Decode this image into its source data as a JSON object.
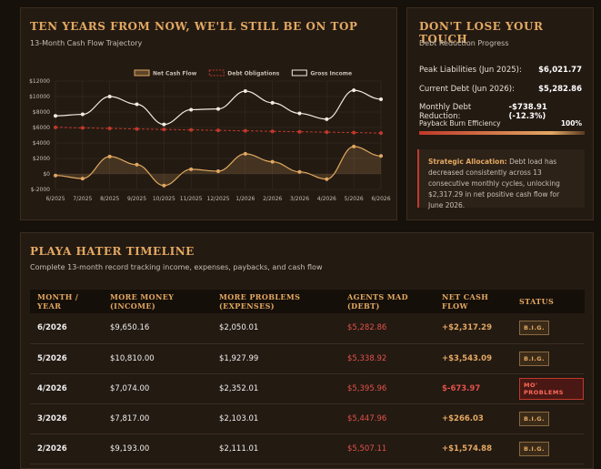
{
  "chart_data": {
    "type": "line",
    "title": "TEN YEARS FROM NOW, WE'LL STILL BE ON TOP",
    "subtitle": "13-Month Cash Flow Trajectory",
    "categories": [
      "6/2025",
      "7/2025",
      "8/2025",
      "9/2025",
      "10/2025",
      "11/2025",
      "12/2025",
      "1/2026",
      "2/2026",
      "3/2026",
      "4/2026",
      "5/2026",
      "6/2026"
    ],
    "series": [
      {
        "name": "Net Cash Flow",
        "color": "#e0a860",
        "values": [
          -200,
          -600,
          2250,
          1200,
          -1500,
          600,
          350,
          2600,
          1574.88,
          266.03,
          -673.97,
          3543.09,
          2317.29
        ]
      },
      {
        "name": "Debt Obligations",
        "color": "#c0392b",
        "values": [
          6021.77,
          5950,
          5880,
          5810,
          5750,
          5690,
          5630,
          5570,
          5507.11,
          5447.96,
          5395.96,
          5338.92,
          5282.86
        ]
      },
      {
        "name": "Gross Income",
        "color": "#f2ece4",
        "values": [
          7500,
          7700,
          10000,
          9000,
          6400,
          8300,
          8400,
          10700,
          9193,
          7817,
          7074,
          10810,
          9650.16
        ]
      }
    ],
    "ylim": [
      -2000,
      12000
    ],
    "yticks": [
      {
        "value": -2000,
        "label": "$-2000"
      },
      {
        "value": 0,
        "label": "$0"
      },
      {
        "value": 2000,
        "label": "$2000"
      },
      {
        "value": 4000,
        "label": "$4000"
      },
      {
        "value": 6000,
        "label": "$6000"
      },
      {
        "value": 8000,
        "label": "$8000"
      },
      {
        "value": 10000,
        "label": "$10000"
      },
      {
        "value": 12000,
        "label": "$12000"
      }
    ],
    "grid": true
  },
  "touch": {
    "title": "DON'T LOSE YOUR TOUCH",
    "subtitle": "Debt Reduction Progress",
    "rows": [
      [
        "Peak Liabilities (Jun 2025):",
        "$6,021.77"
      ],
      [
        "Current Debt (Jun 2026):",
        "$5,282.86"
      ],
      [
        "Monthly Debt Reduction:",
        "-$738.91 (-12.3%)"
      ]
    ],
    "efficiency_label": "Payback Burn Efficiency",
    "efficiency": "100%",
    "note_title": "Strategic Allocation:",
    "note": "Debt load has decreased consistently across 13 consecutive monthly cycles, unlocking $2,317.29 in net positive cash flow for June 2026."
  },
  "timeline": {
    "title": "PLAYA HATER TIMELINE",
    "subtitle": "Complete 13-month record tracking income, expenses, paybacks, and cash flow",
    "columns": [
      "MONTH / YEAR",
      "MORE MONEY (INCOME)",
      "MORE PROBLEMS (EXPENSES)",
      "AGENTS MAD (DEBT)",
      "NET CASH FLOW",
      "STATUS"
    ],
    "rows": [
      [
        "6/2026",
        "$9,650.16",
        "$2,050.01",
        "$5,282.86",
        "+$2,317.29",
        "B.I.G."
      ],
      [
        "5/2026",
        "$10,810.00",
        "$1,927.99",
        "$5,338.92",
        "+$3,543.09",
        "B.I.G."
      ],
      [
        "4/2026",
        "$7,074.00",
        "$2,352.01",
        "$5,395.96",
        "$-673.97",
        "MO' PROBLEMS"
      ],
      [
        "3/2026",
        "$7,817.00",
        "$2,103.01",
        "$5,447.96",
        "+$266.03",
        "B.I.G."
      ],
      [
        "2/2026",
        "$9,193.00",
        "$2,111.01",
        "$5,507.11",
        "+$1,574.88",
        "B.I.G."
      ]
    ]
  }
}
